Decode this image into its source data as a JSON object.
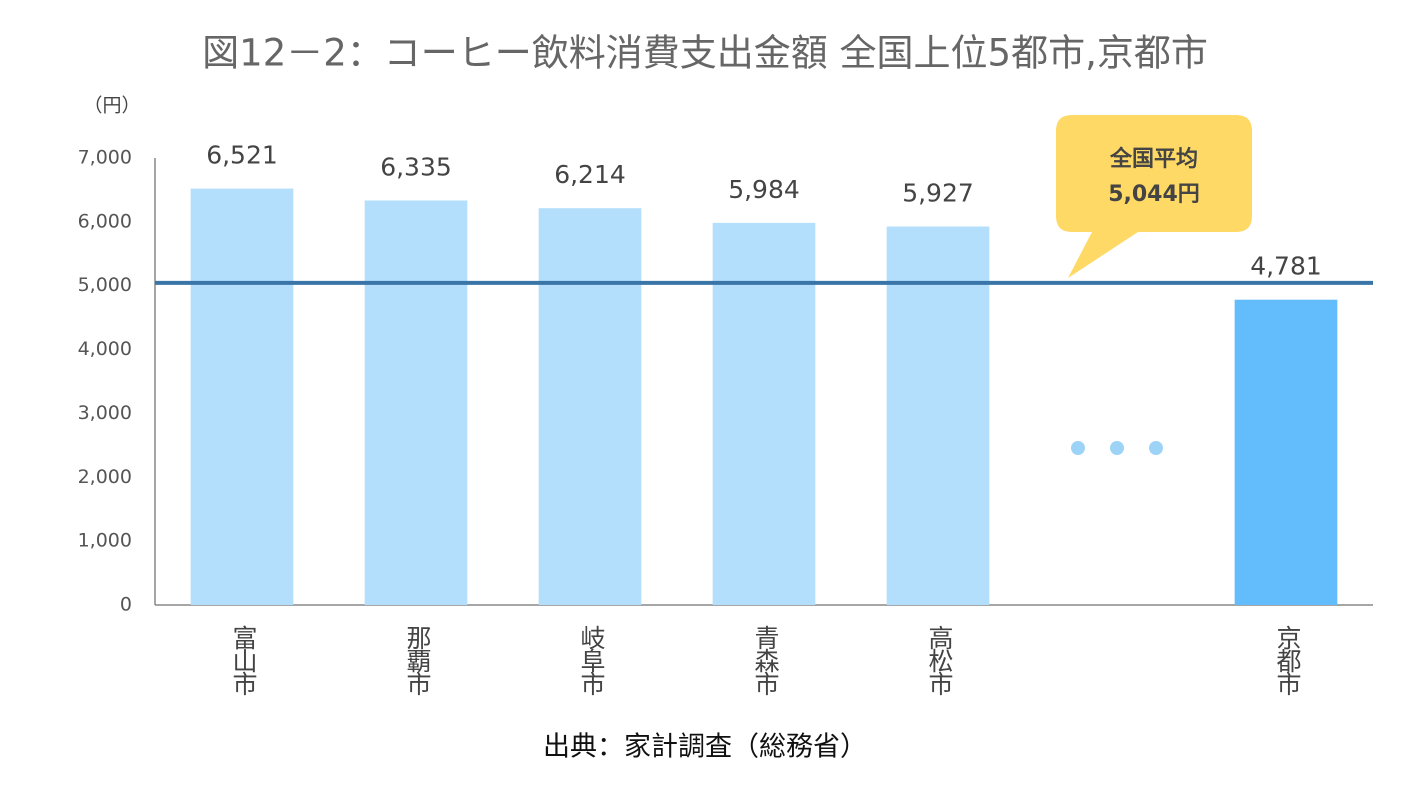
{
  "chart_data": {
    "type": "bar",
    "title": "図12－2：コーヒー飲料消費支出金額  全国上位5都市,京都市",
    "y_label": "（円）",
    "source": "出典：家計調査（総務省）",
    "categories": [
      "富山市",
      "那覇市",
      "岐阜市",
      "青森市",
      "高松市",
      null,
      "京都市"
    ],
    "values": [
      6521,
      6335,
      6214,
      5984,
      5927,
      null,
      4781
    ],
    "value_labels": [
      "6,521",
      "6,335",
      "6,214",
      "5,984",
      "5,927",
      null,
      "4,781"
    ],
    "colors": [
      "#b3dffc",
      "#b3dffc",
      "#b3dffc",
      "#b3dffc",
      "#b3dffc",
      null,
      "#63bcfb"
    ],
    "ylim": [
      0,
      7000
    ],
    "yticks": [
      0,
      {
        "value": 1000,
        "label": "1,000"
      },
      {
        "value": 2000,
        "label": "2,000"
      },
      {
        "value": 3000,
        "label": "3,000"
      },
      {
        "value": 4000,
        "label": "4,000"
      },
      {
        "value": 5000,
        "label": "5,000"
      },
      {
        "value": 6000,
        "label": "6,000"
      },
      {
        "value": 7000,
        "label": "7,000"
      }
    ],
    "grid": false,
    "reference_line": {
      "value": 5044,
      "label": "全国平均",
      "value_label": "5,044円",
      "color": "#3a75a8"
    }
  }
}
